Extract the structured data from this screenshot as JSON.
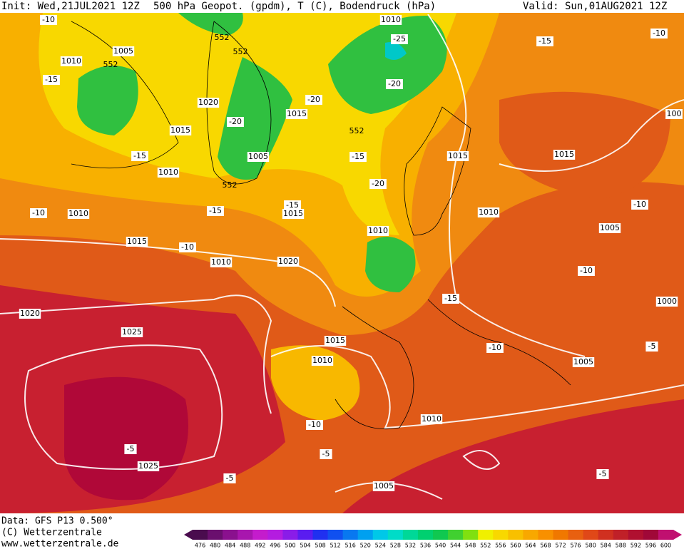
{
  "header": {
    "init": "Init: Wed,21JUL2021 12Z",
    "title": "500 hPa Geopot. (gpdm), T (C), Bodendruck (hPa)",
    "valid": "Valid: Sun,01AUG2021 12Z"
  },
  "map": {
    "isobar_labels": [
      "1010",
      "1005",
      "1010",
      "1020",
      "1015",
      "1015",
      "1010",
      "1005",
      "1015",
      "1015",
      "1010",
      "1015",
      "1010",
      "1010",
      "1005",
      "1015",
      "1010",
      "1020",
      "1000",
      "1020",
      "1025",
      "1015",
      "1010",
      "1005",
      "1010",
      "1025",
      "1005",
      "100"
    ],
    "temperature_labels": [
      "-10",
      "-15",
      "-25",
      "-20",
      "-20",
      "-20",
      "-15",
      "-15",
      "-20",
      "-15",
      "-15",
      "-10",
      "-10",
      "-15",
      "-10",
      "-10",
      "-10",
      "-15",
      "-10",
      "-5",
      "-10",
      "-5",
      "-5",
      "-5",
      "-5"
    ],
    "height_labels": [
      "552",
      "552",
      "552",
      "552",
      "552"
    ]
  },
  "footer": {
    "data": "Data: GFS P13 0.500°",
    "copyright": "(C) Wetterzentrale",
    "url": "www.wetterzentrale.de"
  },
  "colorbar": {
    "ticks": [
      476,
      480,
      484,
      488,
      492,
      496,
      500,
      504,
      508,
      512,
      516,
      520,
      524,
      528,
      532,
      536,
      540,
      544,
      548,
      552,
      556,
      560,
      564,
      568,
      572,
      576,
      580,
      584,
      588,
      592,
      596,
      600
    ],
    "colors": [
      "#4a0c4e",
      "#6a0f6e",
      "#8a118e",
      "#a816ae",
      "#c41ccc",
      "#b41ce0",
      "#8a1ce8",
      "#5a1cf0",
      "#2030f0",
      "#1050f0",
      "#0878f0",
      "#00a0f0",
      "#00c8e8",
      "#00dcc8",
      "#00d898",
      "#00d070",
      "#10c850",
      "#40d030",
      "#80e010",
      "#f0f000",
      "#f8d800",
      "#f8c000",
      "#f8a800",
      "#f89000",
      "#f07800",
      "#e86010",
      "#e04818",
      "#d03020",
      "#c02028",
      "#b01030",
      "#a00838",
      "#c01070"
    ]
  }
}
